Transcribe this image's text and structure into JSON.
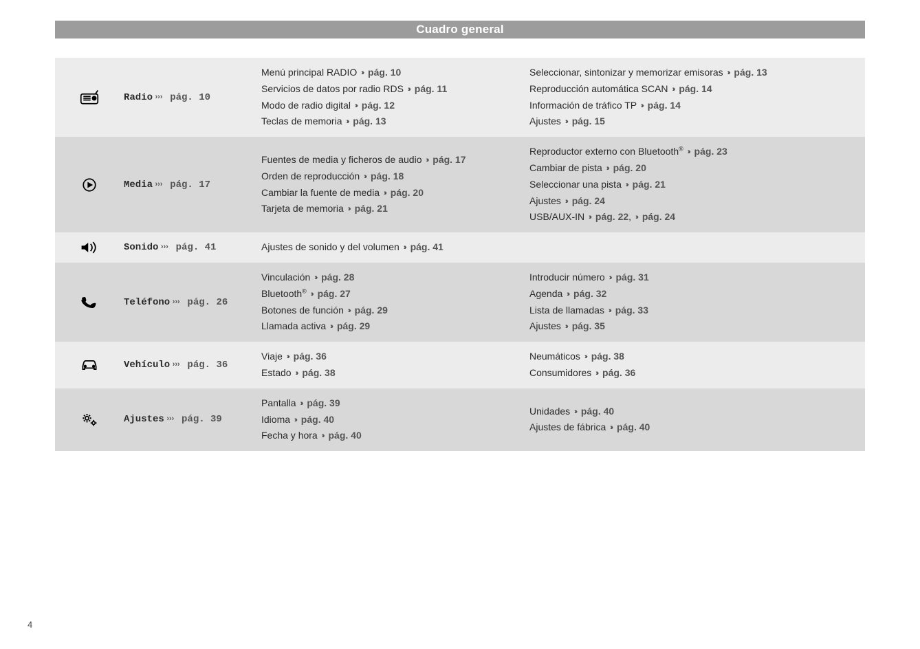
{
  "title": "Cuadro general",
  "pageNumber": "4",
  "pageRefPrefix": "pág.",
  "chevron": "›››",
  "colors": {
    "titleBarBg": "#9c9c9c",
    "titleText": "#ffffff",
    "rowAlt1": "#ececec",
    "rowAlt2": "#d8d8d8",
    "text": "#2a2a2a",
    "pageRef": "#555555"
  },
  "rows": [
    {
      "icon": "radio",
      "name": "Radio",
      "namePage": "10",
      "left": [
        {
          "text": "Menú principal RADIO",
          "page": "10"
        },
        {
          "text": "Servicios de datos por radio RDS",
          "page": "11"
        },
        {
          "text": "Modo de radio digital",
          "page": "12"
        },
        {
          "text": "Teclas de memoria",
          "page": "13"
        }
      ],
      "right": [
        {
          "text": "Seleccionar, sintonizar y memorizar emisoras",
          "page": "13"
        },
        {
          "text": "Reproducción automática SCAN",
          "page": "14"
        },
        {
          "text": "Información de tráfico TP",
          "page": "14"
        },
        {
          "text": "Ajustes",
          "page": "15"
        }
      ]
    },
    {
      "icon": "media",
      "name": "Media",
      "namePage": "17",
      "left": [
        {
          "text": "Fuentes de media y ficheros de audio",
          "page": "17"
        },
        {
          "text": "Orden de reproducción",
          "page": "18"
        },
        {
          "text": "Cambiar la fuente de media",
          "page": "20"
        },
        {
          "text": "Tarjeta de memoria",
          "page": "21"
        }
      ],
      "right": [
        {
          "text": "Reproductor externo con Bluetooth",
          "sup": "®",
          "page": "23"
        },
        {
          "text": "Cambiar de pista",
          "page": "20"
        },
        {
          "text": "Seleccionar una pista",
          "page": "21"
        },
        {
          "text": "Ajustes",
          "page": "24"
        },
        {
          "text": "USB/AUX-IN",
          "page": "22",
          "extraPage": "24"
        }
      ]
    },
    {
      "icon": "sound",
      "name": "Sonido",
      "namePage": "41",
      "left": [
        {
          "text": "Ajustes de sonido y del volumen",
          "page": "41"
        }
      ],
      "right": []
    },
    {
      "icon": "phone",
      "name": "Teléfono",
      "namePage": "26",
      "left": [
        {
          "text": "Vinculación",
          "page": "28"
        },
        {
          "text": "Bluetooth",
          "sup": "®",
          "page": "27"
        },
        {
          "text": "Botones de función",
          "page": "29"
        },
        {
          "text": "Llamada activa",
          "page": "29"
        }
      ],
      "right": [
        {
          "text": "Introducir número",
          "page": "31"
        },
        {
          "text": "Agenda",
          "page": "32"
        },
        {
          "text": "Lista de llamadas",
          "page": "33"
        },
        {
          "text": "Ajustes",
          "page": "35"
        }
      ]
    },
    {
      "icon": "vehicle",
      "name": "Vehículo",
      "namePage": "36",
      "left": [
        {
          "text": "Viaje",
          "page": "36"
        },
        {
          "text": "Estado",
          "page": "38"
        }
      ],
      "right": [
        {
          "text": "Neumáticos",
          "page": "38"
        },
        {
          "text": "Consumidores",
          "page": "36"
        }
      ]
    },
    {
      "icon": "settings",
      "name": "Ajustes",
      "namePage": "39",
      "left": [
        {
          "text": "Pantalla",
          "page": "39"
        },
        {
          "text": "Idioma",
          "page": "40"
        },
        {
          "text": "Fecha y hora",
          "page": "40"
        }
      ],
      "right": [
        {
          "text": "Unidades",
          "page": "40"
        },
        {
          "text": "Ajustes de fábrica",
          "page": "40"
        }
      ]
    }
  ],
  "icons": {
    "radio": "<svg viewBox='0 0 32 24' fill='none' stroke='#000' stroke-width='2'><rect x='2' y='6' width='28' height='16' rx='3'/><line x1='6' y1='10' x2='18' y2='10'/><line x1='6' y1='13' x2='18' y2='13'/><line x1='6' y1='16' x2='18' y2='16'/><circle cx='24' cy='13' r='3' fill='#000'/><line x1='26' y1='6' x2='30' y2='0'/></svg>",
    "media": "<svg viewBox='0 0 32 24' fill='none' stroke='#000' stroke-width='2'><circle cx='16' cy='12' r='10'/><polygon points='13,7 13,17 22,12' fill='#000' stroke='none'/></svg>",
    "sound": "<svg viewBox='0 0 32 24' fill='none' stroke='#000' stroke-width='2'><polygon points='3,9 8,9 14,4 14,20 8,15 3,15' fill='#000' stroke='none'/><path d='M18 6 Q23 12 18 18'/><path d='M22 3 Q30 12 22 21'/></svg>",
    "phone": "<svg viewBox='0 0 32 24' fill='none' stroke='#000' stroke-width='2'><path d='M6 4 Q4 4 4 6 Q4 10 7 14 Q11 20 18 22 Q22 23 24 20 L26 17 Q26 15 24 15 L20 15 Q18 15 17 17 Q12 14 10 9 Q12 8 12 6 L12 3 Q12 1 10 1 L7 1 Q5 1 6 4 Z' fill='#000' stroke='none' transform='rotate(-15 16 12)'/></svg>",
    "vehicle": "<svg viewBox='0 0 32 24' fill='none' stroke='#000' stroke-width='2'><path d='M5 14 L7 7 Q8 5 10 5 L22 5 Q24 5 25 7 L27 14 L27 19 L24 19 L24 17 L8 17 L8 19 L5 19 Z'/><circle cx='9' cy='14' r='1.5' fill='#000'/><circle cx='23' cy='14' r='1.5' fill='#000'/></svg>",
    "settings": "<svg viewBox='0 0 32 24' fill='none' stroke='#000' stroke-width='2'><circle cx='12' cy='10' r='3' fill='none'/><path d='M12 3 L12 5 M12 15 L12 17 M5 10 L7 10 M17 10 L19 10 M7 5 L8.5 6.5 M15.5 13.5 L17 15 M7 15 L8.5 13.5 M15.5 6.5 L17 5' stroke-width='2.5'/><circle cx='23' cy='18' r='2.5' fill='none'/><path d='M23 13 L23 14.5 M23 21.5 L23 23 M18 18 L19.5 18 M26.5 18 L28 18' stroke-width='2'/></svg>"
  }
}
